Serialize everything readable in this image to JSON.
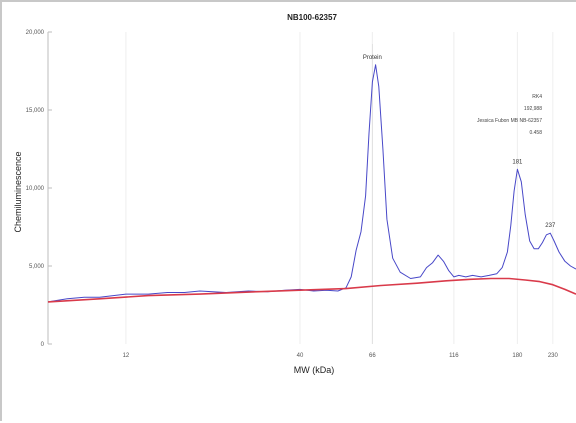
{
  "chart_data": {
    "type": "line",
    "title": "NB100-62357",
    "xlabel": "MW (kDa)",
    "ylabel": "Chemiluminescence",
    "x_scale": "log",
    "xlim": [
      7,
      270
    ],
    "ylim": [
      0,
      20000
    ],
    "x_ticks": [
      {
        "value": 12,
        "label": "12"
      },
      {
        "value": 40,
        "label": "40"
      },
      {
        "value": 66,
        "label": "66"
      },
      {
        "value": 116,
        "label": "116"
      },
      {
        "value": 180,
        "label": "180"
      },
      {
        "value": 230,
        "label": "230"
      }
    ],
    "y_ticks": [
      {
        "value": 0,
        "label": "0"
      },
      {
        "value": 5000,
        "label": "5,000"
      },
      {
        "value": 10000,
        "label": "10,000"
      },
      {
        "value": 15000,
        "label": "15,000"
      },
      {
        "value": 20000,
        "label": "20,000"
      }
    ],
    "series": [
      {
        "color": "#4848c8",
        "x": [
          7,
          8,
          9,
          10,
          11,
          12,
          14,
          16,
          18,
          20,
          24,
          28,
          32,
          36,
          40,
          44,
          48,
          52,
          55,
          57,
          59,
          61,
          63,
          64.5,
          66,
          67.5,
          69,
          71,
          73,
          76,
          80,
          86,
          92,
          96,
          100,
          104,
          108,
          112,
          116,
          120,
          126,
          132,
          140,
          148,
          156,
          162,
          168,
          172,
          176,
          180,
          185,
          190,
          196,
          202,
          208,
          214,
          220,
          226,
          232,
          240,
          250,
          260,
          270
        ],
        "y": [
          2700,
          2900,
          3000,
          3000,
          3100,
          3200,
          3200,
          3300,
          3300,
          3400,
          3300,
          3400,
          3350,
          3450,
          3500,
          3400,
          3450,
          3400,
          3600,
          4300,
          6000,
          7200,
          9500,
          13500,
          16800,
          17900,
          16500,
          12500,
          8000,
          5500,
          4600,
          4200,
          4300,
          4900,
          5200,
          5700,
          5300,
          4700,
          4300,
          4400,
          4300,
          4400,
          4300,
          4400,
          4500,
          4900,
          5900,
          7600,
          9800,
          11200,
          10400,
          8300,
          6600,
          6100,
          6100,
          6500,
          7000,
          7100,
          6600,
          5900,
          5300,
          5000,
          4800
        ]
      },
      {
        "color": "#d93a4a",
        "x": [
          7,
          10,
          14,
          20,
          30,
          40,
          55,
          70,
          90,
          110,
          130,
          150,
          170,
          190,
          210,
          230,
          250,
          270
        ],
        "y": [
          2700,
          2900,
          3100,
          3200,
          3350,
          3450,
          3550,
          3750,
          3900,
          4050,
          4150,
          4200,
          4200,
          4100,
          4000,
          3800,
          3500,
          3200
        ]
      }
    ],
    "annotations": {
      "peak_labels": [
        {
          "x": 66,
          "y": 17900,
          "label": "Protein"
        },
        {
          "x": 180,
          "y": 11200,
          "label": "181"
        },
        {
          "x": 226,
          "y": 7100,
          "label": "237"
        }
      ],
      "info_lines": [
        "RK4",
        "192,988",
        "Jessica Fubon MB NB-62357",
        "0.458"
      ]
    }
  }
}
